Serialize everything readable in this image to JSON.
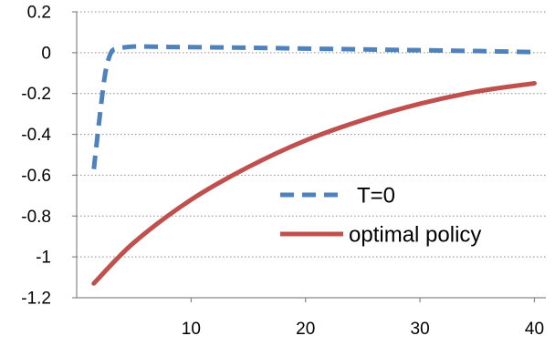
{
  "chart_data": {
    "type": "line",
    "title": "",
    "xlabel": "",
    "ylabel": "",
    "xlim": [
      0,
      41
    ],
    "ylim": [
      -1.2,
      0.2
    ],
    "xticks": [
      10,
      20,
      30,
      40
    ],
    "yticks": [
      0.2,
      0,
      -0.2,
      -0.4,
      -0.6,
      -0.8,
      -1,
      -1.2
    ],
    "xtick_labels": [
      "10",
      "20",
      "30",
      "40"
    ],
    "ytick_labels": [
      "0.2",
      "0",
      "-0.2",
      "-0.4",
      "-0.6",
      "-0.8",
      "-1",
      "-1.2"
    ],
    "grid": "horizontal dotted",
    "legend_position": "lower-right",
    "series": [
      {
        "name": "T=0",
        "color": "#4f81bd",
        "style": "dashed",
        "x": [
          1.5,
          2,
          2.5,
          3,
          3.5,
          4,
          5,
          6,
          8,
          10,
          15,
          20,
          25,
          30,
          35,
          40
        ],
        "y": [
          -0.57,
          -0.32,
          -0.1,
          0.0,
          0.02,
          0.025,
          0.03,
          0.03,
          0.028,
          0.027,
          0.024,
          0.02,
          0.016,
          0.012,
          0.008,
          0.003
        ]
      },
      {
        "name": "optimal policy",
        "color": "#c0504d",
        "style": "solid",
        "x": [
          1.5,
          5,
          10,
          15,
          20,
          25,
          30,
          35,
          40
        ],
        "y": [
          -1.13,
          -0.93,
          -0.72,
          -0.56,
          -0.43,
          -0.33,
          -0.25,
          -0.19,
          -0.15
        ]
      }
    ]
  }
}
